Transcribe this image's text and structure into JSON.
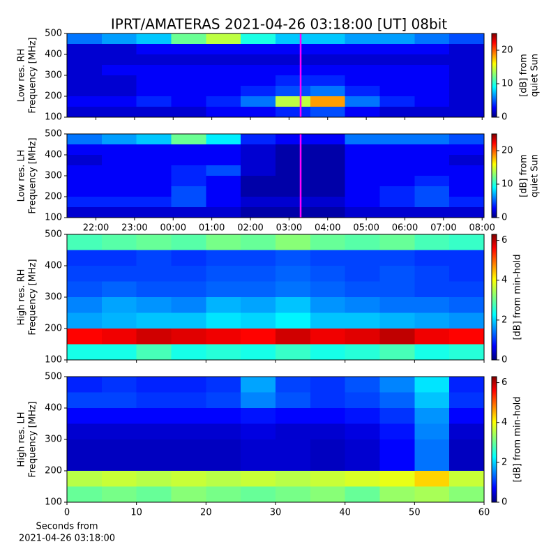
{
  "title": "IPRT/AMATERAS 2021-04-26 03:18:00 [UT]   08bit",
  "chart_data": [
    {
      "type": "heatmap",
      "colormap": "jet",
      "ylabel": [
        "Low res. RH",
        "Frequency [MHz]"
      ],
      "xlim": [
        21.25,
        32.05
      ],
      "ylim": [
        100,
        500
      ],
      "yticks": [
        100,
        200,
        300,
        400,
        500
      ],
      "xbins": [
        21.25,
        22.15,
        23.05,
        23.95,
        24.85,
        25.75,
        26.65,
        27.55,
        28.45,
        29.35,
        30.25,
        31.15,
        32.05
      ],
      "ybins": [
        100,
        150,
        200,
        250,
        300,
        350,
        400,
        450,
        500
      ],
      "z": [
        [
          2,
          2,
          2,
          2,
          3,
          3,
          4,
          5,
          3,
          2,
          2,
          2
        ],
        [
          3,
          3,
          4,
          3,
          4,
          6,
          14,
          18,
          6,
          4,
          3,
          2
        ],
        [
          2,
          2,
          3,
          3,
          3,
          4,
          5,
          6,
          4,
          3,
          3,
          2
        ],
        [
          2,
          2,
          3,
          3,
          3,
          3,
          4,
          4,
          3,
          3,
          3,
          2
        ],
        [
          2,
          3,
          3,
          3,
          3,
          3,
          3,
          3,
          3,
          3,
          3,
          2
        ],
        [
          2,
          2,
          2,
          2,
          2,
          2,
          2,
          2,
          2,
          2,
          2,
          2
        ],
        [
          2,
          2,
          3,
          3,
          3,
          3,
          3,
          3,
          3,
          3,
          3,
          2
        ],
        [
          6,
          7,
          8,
          12,
          14,
          10,
          8,
          8,
          7,
          7,
          6,
          5
        ]
      ],
      "marker": {
        "value": 27.3,
        "color": "#ff00ff"
      },
      "clim": [
        0,
        25
      ],
      "cticks": [
        0,
        10,
        20
      ],
      "clabel": [
        "[dB] from",
        "quiet Sun"
      ]
    },
    {
      "type": "heatmap",
      "colormap": "jet",
      "ylabel": [
        "Low res. LH",
        "Frequency [MHz]"
      ],
      "xlim": [
        21.25,
        32.05
      ],
      "ylim": [
        100,
        500
      ],
      "yticks": [
        100,
        200,
        300,
        400,
        500
      ],
      "xticks": [
        {
          "value": 22,
          "label": "22:00"
        },
        {
          "value": 23,
          "label": "23:00"
        },
        {
          "value": 24,
          "label": "00:00"
        },
        {
          "value": 25,
          "label": "01:00"
        },
        {
          "value": 26,
          "label": "02:00"
        },
        {
          "value": 27,
          "label": "03:00"
        },
        {
          "value": 28,
          "label": "04:00"
        },
        {
          "value": 29,
          "label": "05:00"
        },
        {
          "value": 30,
          "label": "06:00"
        },
        {
          "value": 31,
          "label": "07:00"
        },
        {
          "value": 32,
          "label": "08:00"
        }
      ],
      "xbins": [
        21.25,
        22.15,
        23.05,
        23.95,
        24.85,
        25.75,
        26.65,
        27.55,
        28.45,
        29.35,
        30.25,
        31.15,
        32.05
      ],
      "ybins": [
        100,
        150,
        200,
        250,
        300,
        350,
        400,
        450,
        500
      ],
      "z": [
        [
          2,
          2,
          2,
          2,
          2,
          1,
          1,
          1,
          2,
          2,
          2,
          2
        ],
        [
          4,
          4,
          4,
          5,
          3,
          2,
          2,
          2,
          3,
          4,
          5,
          4
        ],
        [
          3,
          3,
          3,
          5,
          3,
          1,
          1,
          1,
          3,
          4,
          5,
          3
        ],
        [
          3,
          3,
          3,
          4,
          3,
          1,
          1,
          1,
          3,
          3,
          4,
          3
        ],
        [
          3,
          3,
          3,
          4,
          5,
          2,
          1,
          1,
          3,
          3,
          3,
          3
        ],
        [
          2,
          3,
          3,
          3,
          3,
          2,
          1,
          1,
          3,
          3,
          3,
          2
        ],
        [
          3,
          3,
          3,
          3,
          3,
          2,
          1,
          1,
          3,
          3,
          3,
          3
        ],
        [
          6,
          7,
          8,
          12,
          9,
          4,
          3,
          3,
          6,
          6,
          6,
          5
        ]
      ],
      "marker": {
        "value": 27.3,
        "color": "#ff00ff"
      },
      "clim": [
        0,
        25
      ],
      "cticks": [
        0,
        10,
        20
      ],
      "clabel": [
        "[dB] from",
        "quiet Sun"
      ]
    },
    {
      "type": "heatmap",
      "colormap": "jet",
      "ylabel": [
        "High res. RH",
        "Frequency [MHz]"
      ],
      "xlim": [
        0,
        60
      ],
      "ylim": [
        100,
        500
      ],
      "yticks": [
        100,
        200,
        300,
        400,
        500
      ],
      "xbins": [
        0,
        5,
        10,
        15,
        20,
        25,
        30,
        35,
        40,
        45,
        50,
        55,
        60
      ],
      "ybins": [
        100,
        150,
        200,
        250,
        300,
        350,
        400,
        450,
        500
      ],
      "z": [
        [
          2.5,
          2.5,
          2.8,
          2.5,
          2.6,
          2.5,
          2.7,
          2.5,
          2.6,
          2.8,
          2.5,
          2.6
        ],
        [
          5.5,
          5.6,
          5.8,
          5.7,
          5.6,
          5.5,
          5.8,
          5.6,
          5.7,
          5.9,
          5.6,
          5.5
        ],
        [
          1.8,
          1.9,
          2.0,
          2.0,
          2.2,
          2.1,
          2.3,
          2.0,
          2.0,
          1.9,
          1.8,
          1.7
        ],
        [
          1.6,
          1.8,
          1.7,
          1.6,
          1.9,
          1.8,
          2.0,
          1.7,
          1.6,
          1.5,
          1.5,
          1.4
        ],
        [
          1.3,
          1.4,
          1.3,
          1.3,
          1.4,
          1.4,
          1.5,
          1.4,
          1.3,
          1.3,
          1.2,
          1.2
        ],
        [
          1.2,
          1.2,
          1.2,
          1.2,
          1.3,
          1.3,
          1.4,
          1.3,
          1.2,
          1.3,
          1.2,
          1.1
        ],
        [
          1.1,
          1.1,
          1.2,
          1.1,
          1.2,
          1.2,
          1.3,
          1.2,
          1.2,
          1.2,
          1.1,
          1.1
        ],
        [
          2.8,
          2.9,
          3.0,
          2.9,
          3.1,
          3.0,
          3.2,
          3.0,
          2.9,
          3.0,
          2.8,
          2.7
        ]
      ],
      "clim": [
        0,
        6.3
      ],
      "cticks": [
        0,
        2,
        4,
        6
      ],
      "clabel": [
        "[dB] from min-hold"
      ]
    },
    {
      "type": "heatmap",
      "colormap": "jet",
      "ylabel": [
        "High res. LH",
        "Frequency [MHz]"
      ],
      "xlabel": [
        "Seconds from",
        "2021-04-26 03:18:00"
      ],
      "xlim": [
        0,
        60
      ],
      "ylim": [
        100,
        500
      ],
      "yticks": [
        100,
        200,
        300,
        400,
        500
      ],
      "xticks": [
        0,
        10,
        20,
        30,
        40,
        50,
        60
      ],
      "xbins": [
        0,
        5,
        10,
        15,
        20,
        25,
        30,
        35,
        40,
        45,
        50,
        55,
        60
      ],
      "ybins": [
        100,
        150,
        200,
        250,
        300,
        350,
        400,
        450,
        500
      ],
      "z": [
        [
          3.0,
          3.1,
          3.0,
          3.2,
          3.1,
          3.0,
          3.1,
          3.2,
          3.0,
          3.3,
          3.4,
          3.2
        ],
        [
          3.5,
          3.6,
          3.5,
          3.6,
          3.5,
          3.6,
          3.5,
          3.6,
          3.7,
          3.8,
          4.2,
          3.6
        ],
        [
          0.4,
          0.4,
          0.4,
          0.4,
          0.4,
          0.5,
          0.5,
          0.4,
          0.5,
          0.8,
          1.5,
          0.4
        ],
        [
          0.4,
          0.4,
          0.4,
          0.4,
          0.4,
          0.5,
          0.5,
          0.4,
          0.5,
          0.8,
          1.5,
          0.4
        ],
        [
          0.5,
          0.5,
          0.5,
          0.5,
          0.5,
          0.6,
          0.5,
          0.5,
          0.6,
          0.9,
          1.6,
          0.5
        ],
        [
          0.8,
          0.8,
          0.8,
          0.8,
          0.8,
          0.9,
          0.8,
          0.8,
          0.9,
          1.1,
          1.7,
          0.8
        ],
        [
          1.2,
          1.2,
          1.1,
          1.1,
          1.2,
          1.6,
          1.3,
          1.1,
          1.2,
          1.4,
          2.0,
          1.1
        ],
        [
          1.0,
          1.1,
          1.0,
          1.0,
          1.1,
          1.8,
          1.2,
          1.1,
          1.3,
          1.6,
          2.2,
          1.0
        ]
      ],
      "clim": [
        0,
        6.3
      ],
      "cticks": [
        0,
        2,
        4,
        6
      ],
      "clabel": [
        "[dB] from min-hold"
      ]
    }
  ]
}
